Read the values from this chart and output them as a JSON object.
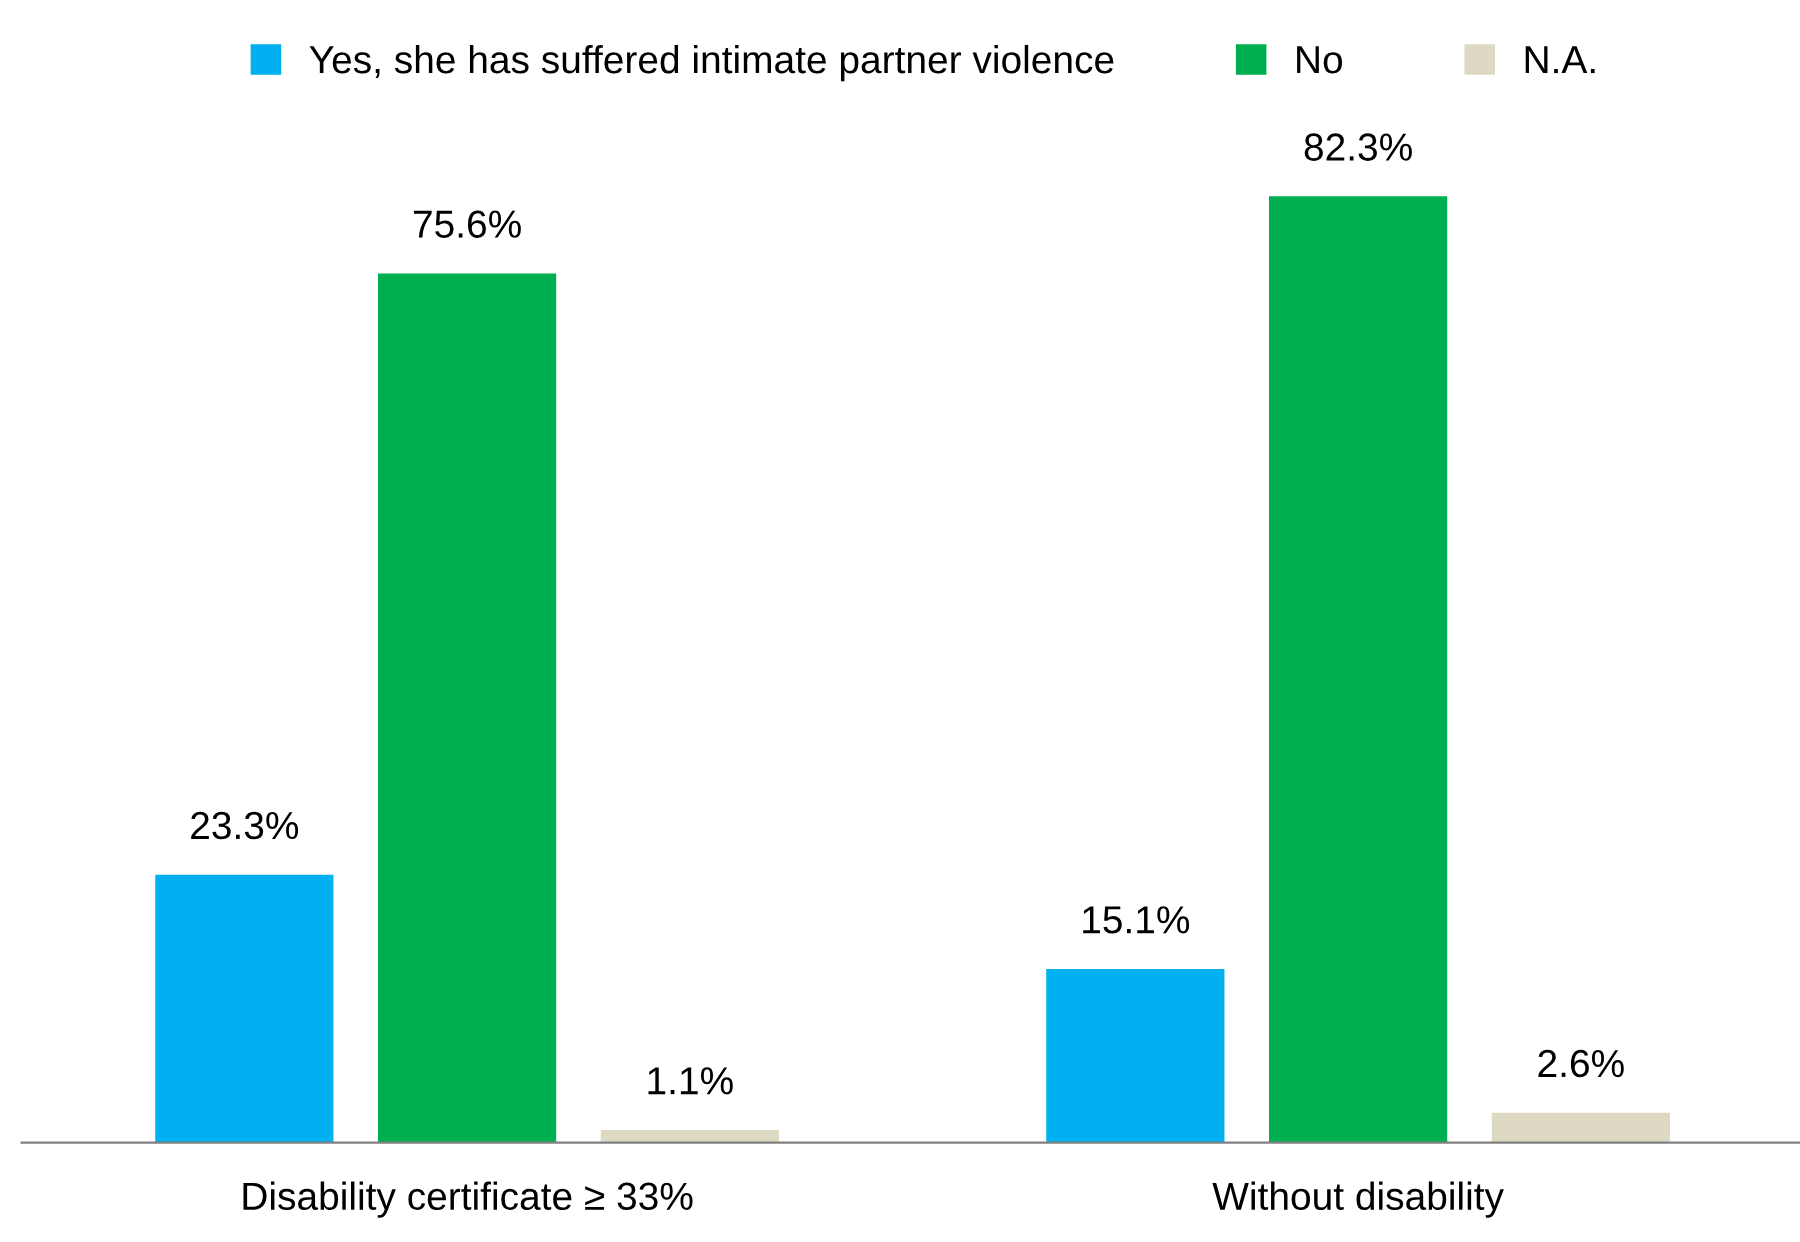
{
  "chart_data": {
    "type": "bar",
    "categories": [
      "Disability certificate ≥ 33%",
      "Without disability"
    ],
    "series": [
      {
        "name": "Yes, she has suffered intimate partner violence",
        "color": "#00b0f0",
        "values": [
          23.3,
          15.1
        ],
        "value_labels": [
          "23.3%",
          "15.1%"
        ]
      },
      {
        "name": "No",
        "color": "#00b050",
        "values": [
          75.6,
          82.3
        ],
        "value_labels": [
          "75.6%",
          "82.3%"
        ]
      },
      {
        "name": "N.A.",
        "color": "#ddd9c3",
        "values": [
          1.1,
          2.6
        ],
        "value_labels": [
          "1.1%",
          "2.6%"
        ]
      }
    ],
    "legend": "top",
    "grid": false
  }
}
